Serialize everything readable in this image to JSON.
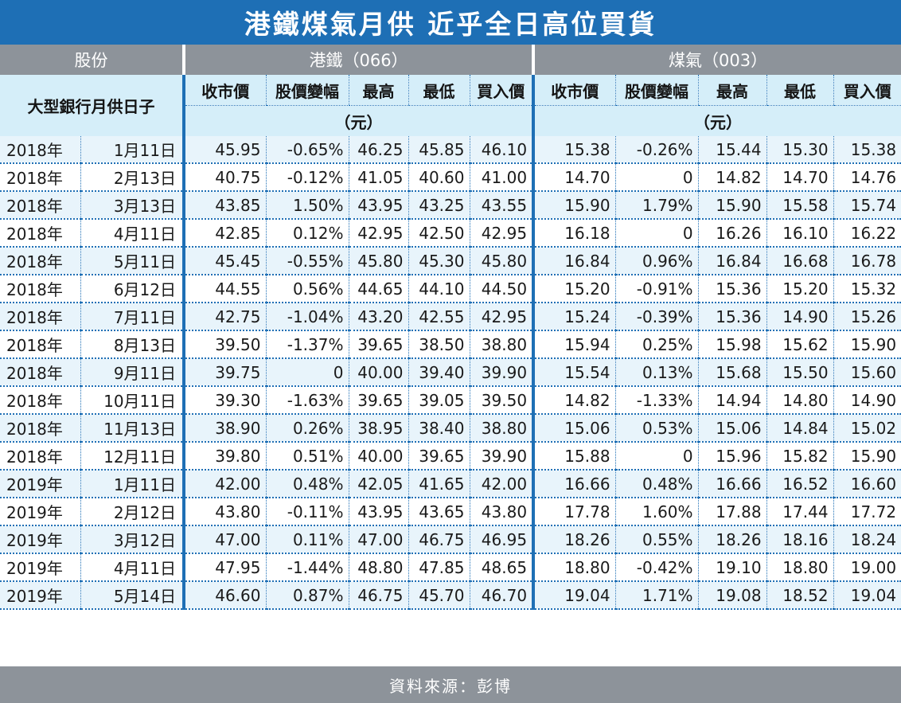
{
  "title": "港鐵煤氣月供 近乎全日高位買貨",
  "header": {
    "stock_label": "股份",
    "groups": [
      "港鐵（066）",
      "煤氣（003）"
    ],
    "row_label": "大型銀行月供日子",
    "columns": [
      "收市價",
      "股價變幅",
      "最高",
      "最低",
      "買入價"
    ],
    "unit": "（元）"
  },
  "rows": [
    {
      "year": "2018年",
      "date": "1月11日",
      "mtr": [
        "45.95",
        "-0.65%",
        "46.25",
        "45.85",
        "46.10"
      ],
      "gas": [
        "15.38",
        "-0.26%",
        "15.44",
        "15.30",
        "15.38"
      ]
    },
    {
      "year": "2018年",
      "date": "2月13日",
      "mtr": [
        "40.75",
        "-0.12%",
        "41.05",
        "40.60",
        "41.00"
      ],
      "gas": [
        "14.70",
        "0",
        "14.82",
        "14.70",
        "14.76"
      ]
    },
    {
      "year": "2018年",
      "date": "3月13日",
      "mtr": [
        "43.85",
        "1.50%",
        "43.95",
        "43.25",
        "43.55"
      ],
      "gas": [
        "15.90",
        "1.79%",
        "15.90",
        "15.58",
        "15.74"
      ]
    },
    {
      "year": "2018年",
      "date": "4月11日",
      "mtr": [
        "42.85",
        "0.12%",
        "42.95",
        "42.50",
        "42.95"
      ],
      "gas": [
        "16.18",
        "0",
        "16.26",
        "16.10",
        "16.22"
      ]
    },
    {
      "year": "2018年",
      "date": "5月11日",
      "mtr": [
        "45.45",
        "-0.55%",
        "45.80",
        "45.30",
        "45.80"
      ],
      "gas": [
        "16.84",
        "0.96%",
        "16.84",
        "16.68",
        "16.78"
      ]
    },
    {
      "year": "2018年",
      "date": "6月12日",
      "mtr": [
        "44.55",
        "0.56%",
        "44.65",
        "44.10",
        "44.50"
      ],
      "gas": [
        "15.20",
        "-0.91%",
        "15.36",
        "15.20",
        "15.32"
      ]
    },
    {
      "year": "2018年",
      "date": "7月11日",
      "mtr": [
        "42.75",
        "-1.04%",
        "43.20",
        "42.55",
        "42.95"
      ],
      "gas": [
        "15.24",
        "-0.39%",
        "15.36",
        "14.90",
        "15.26"
      ]
    },
    {
      "year": "2018年",
      "date": "8月13日",
      "mtr": [
        "39.50",
        "-1.37%",
        "39.65",
        "38.50",
        "38.80"
      ],
      "gas": [
        "15.94",
        "0.25%",
        "15.98",
        "15.62",
        "15.90"
      ]
    },
    {
      "year": "2018年",
      "date": "9月11日",
      "mtr": [
        "39.75",
        "0",
        "40.00",
        "39.40",
        "39.90"
      ],
      "gas": [
        "15.54",
        "0.13%",
        "15.68",
        "15.50",
        "15.60"
      ]
    },
    {
      "year": "2018年",
      "date": "10月11日",
      "mtr": [
        "39.30",
        "-1.63%",
        "39.65",
        "39.05",
        "39.50"
      ],
      "gas": [
        "14.82",
        "-1.33%",
        "14.94",
        "14.80",
        "14.90"
      ]
    },
    {
      "year": "2018年",
      "date": "11月13日",
      "mtr": [
        "38.90",
        "0.26%",
        "38.95",
        "38.40",
        "38.80"
      ],
      "gas": [
        "15.06",
        "0.53%",
        "15.06",
        "14.84",
        "15.02"
      ]
    },
    {
      "year": "2018年",
      "date": "12月11日",
      "mtr": [
        "39.80",
        "0.51%",
        "40.00",
        "39.65",
        "39.90"
      ],
      "gas": [
        "15.88",
        "0",
        "15.96",
        "15.82",
        "15.90"
      ]
    },
    {
      "year": "2019年",
      "date": "1月11日",
      "mtr": [
        "42.00",
        "0.48%",
        "42.05",
        "41.65",
        "42.00"
      ],
      "gas": [
        "16.66",
        "0.48%",
        "16.66",
        "16.52",
        "16.60"
      ]
    },
    {
      "year": "2019年",
      "date": "2月12日",
      "mtr": [
        "43.80",
        "-0.11%",
        "43.95",
        "43.65",
        "43.80"
      ],
      "gas": [
        "17.78",
        "1.60%",
        "17.88",
        "17.44",
        "17.72"
      ]
    },
    {
      "year": "2019年",
      "date": "3月12日",
      "mtr": [
        "47.00",
        "0.11%",
        "47.00",
        "46.75",
        "46.95"
      ],
      "gas": [
        "18.26",
        "0.55%",
        "18.26",
        "18.16",
        "18.24"
      ]
    },
    {
      "year": "2019年",
      "date": "4月11日",
      "mtr": [
        "47.95",
        "-1.44%",
        "48.80",
        "47.85",
        "48.65"
      ],
      "gas": [
        "18.80",
        "-0.42%",
        "19.10",
        "18.80",
        "19.00"
      ]
    },
    {
      "year": "2019年",
      "date": "5月14日",
      "mtr": [
        "46.60",
        "0.87%",
        "46.75",
        "45.70",
        "46.70"
      ],
      "gas": [
        "19.04",
        "1.71%",
        "19.08",
        "18.52",
        "19.04"
      ]
    }
  ],
  "footer": "資料來源：彭博",
  "colors": {
    "title_bg": "#1e6fb5",
    "header_bg": "#8d939a",
    "subheader_bg": "#d5eef9",
    "row_alt_bg": "#e8f4fb",
    "divider": "#1e6fb5"
  }
}
